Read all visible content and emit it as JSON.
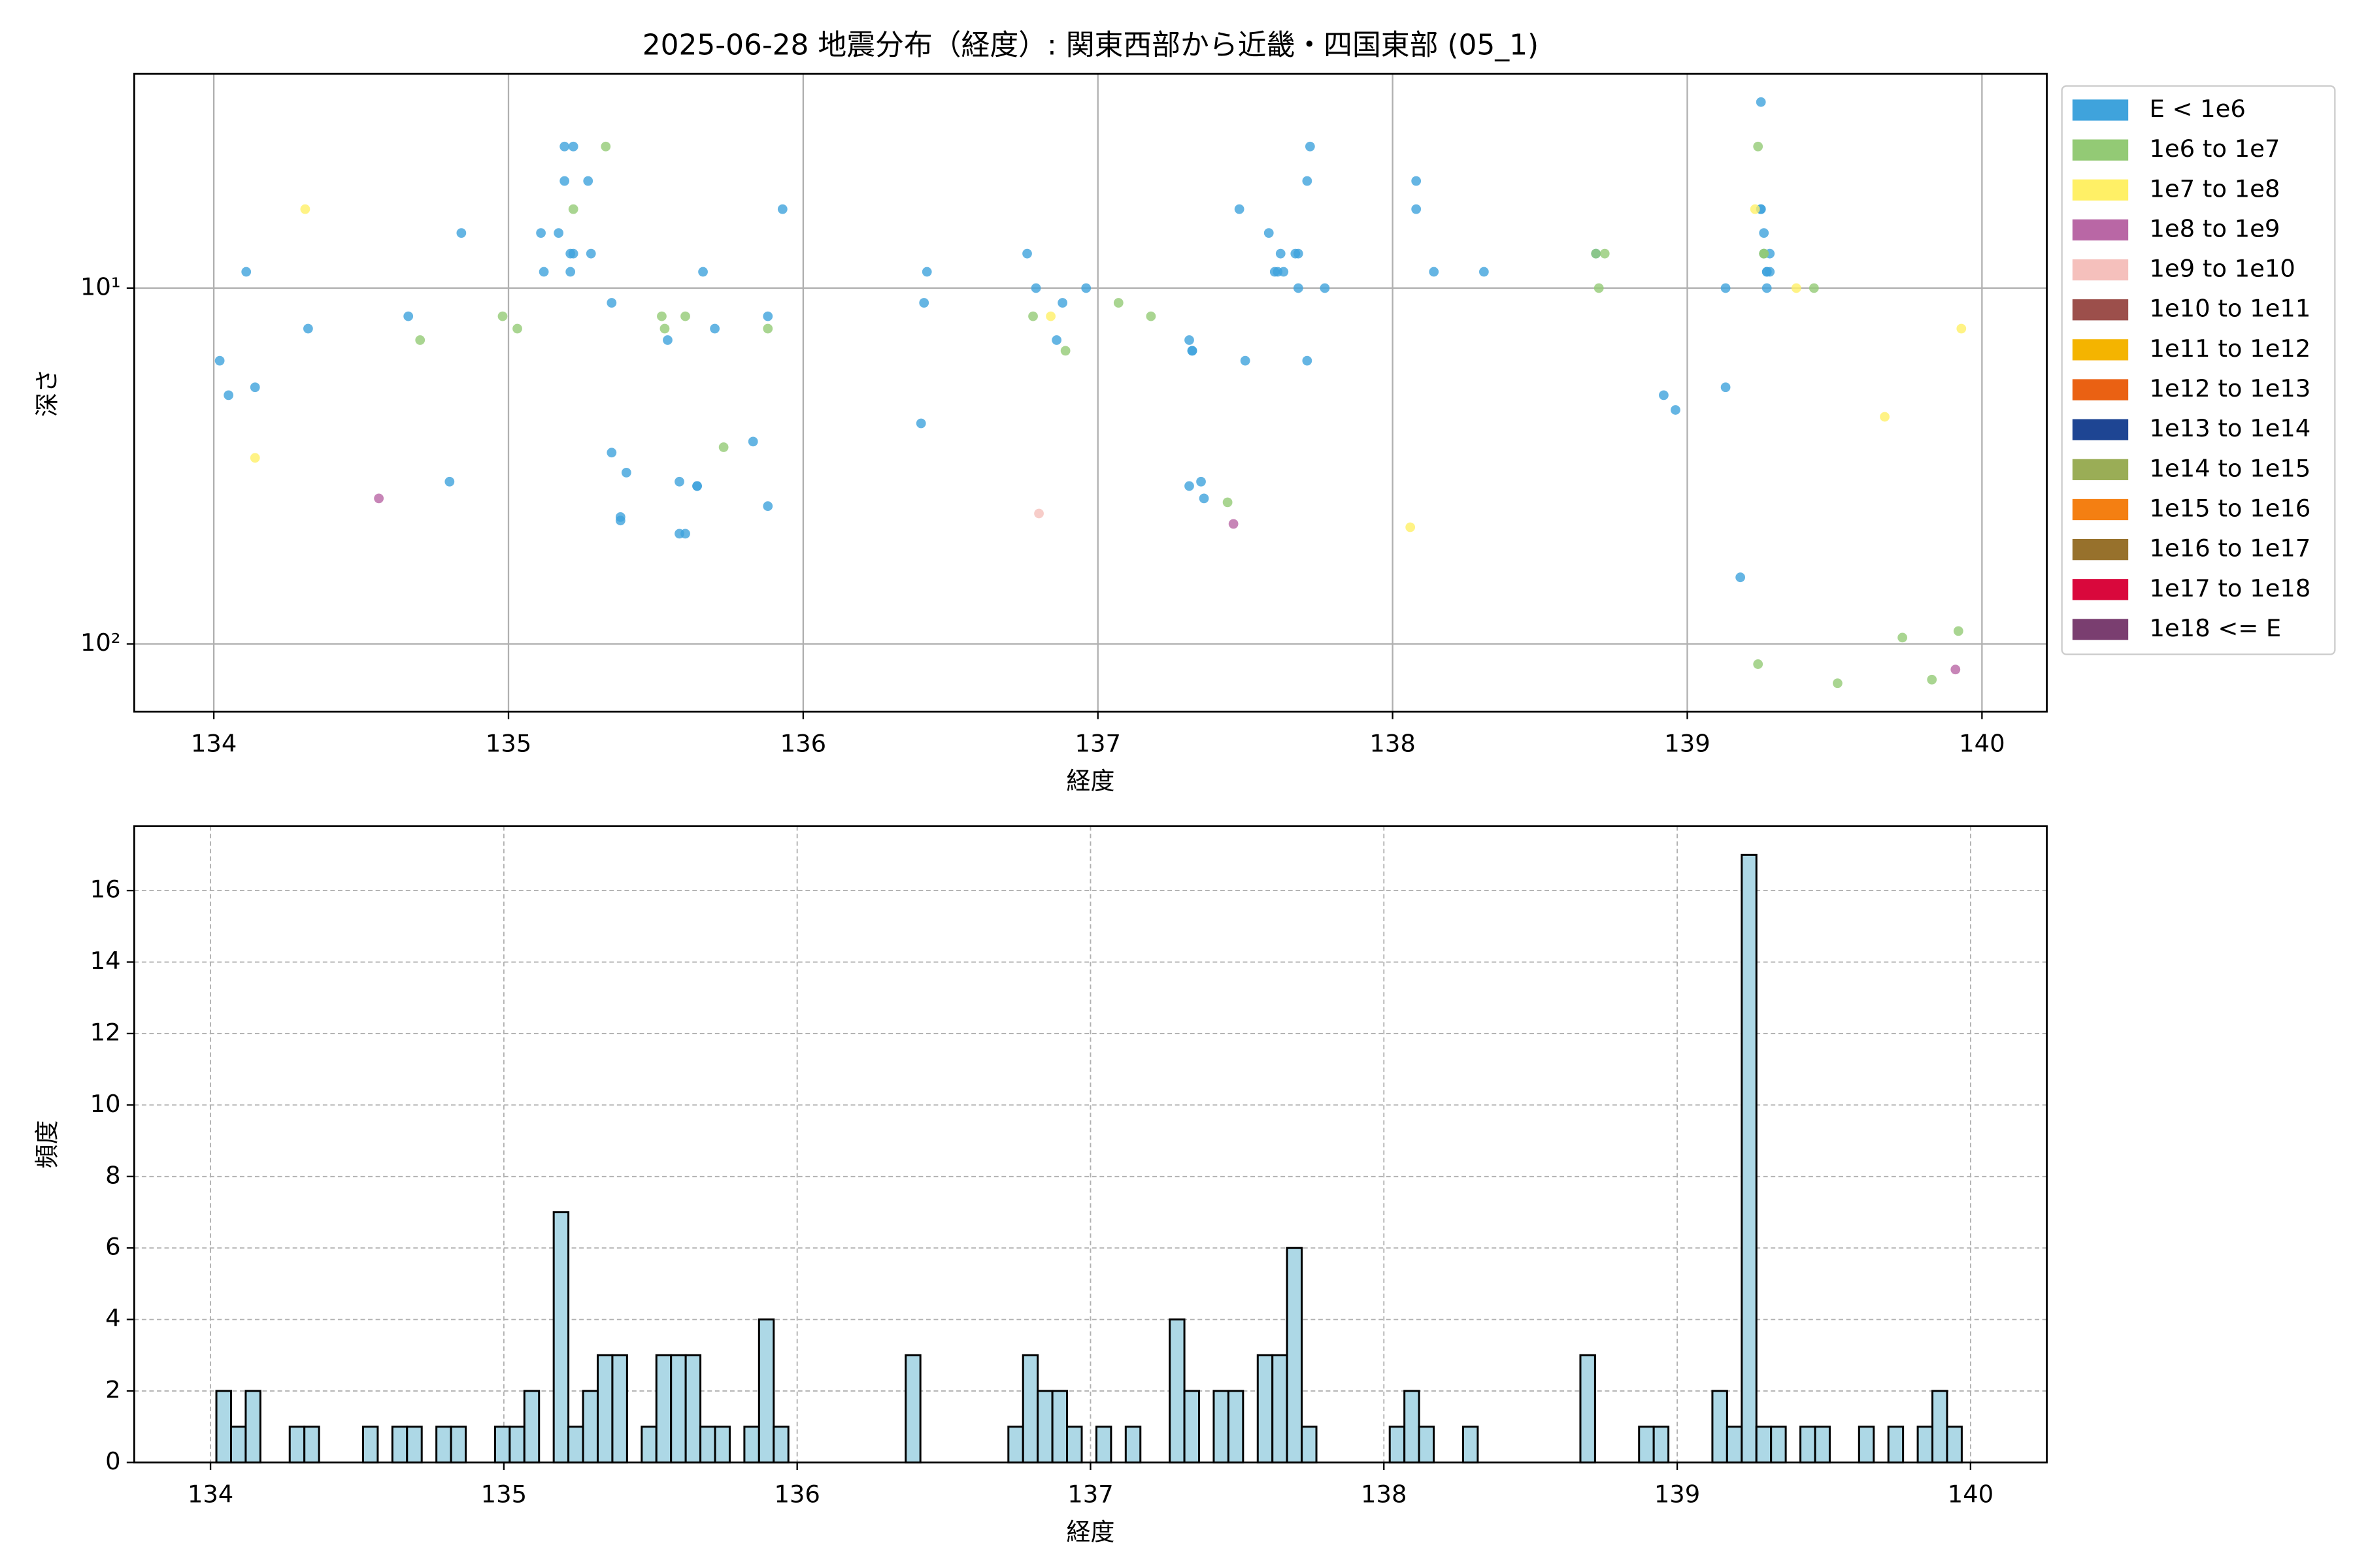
{
  "chart_data": [
    {
      "type": "scatter",
      "title": "2025-06-28 地震分布（経度）: 関東西部から近畿・四国東部 (05_1)",
      "xlabel": "経度",
      "ylabel": "深さ",
      "xlim": [
        133.73,
        140.22
      ],
      "ylim": [
        155,
        2.5
      ],
      "log_y": true,
      "grid": true,
      "legend": "outside right",
      "xticks": [
        134,
        135,
        136,
        137,
        138,
        139,
        140
      ],
      "yticks": [
        {
          "value": 10,
          "label": "10¹"
        },
        {
          "value": 100,
          "label": "10²"
        }
      ],
      "series": [
        {
          "name": "E < 1e6",
          "color": "#3fa3dc",
          "x": [
            134.02,
            134.05,
            134.11,
            134.14,
            134.32,
            134.66,
            134.8,
            134.84,
            135.11,
            135.12,
            135.17,
            135.19,
            135.19,
            135.21,
            135.21,
            135.22,
            135.22,
            135.27,
            135.28,
            135.35,
            135.35,
            135.38,
            135.38,
            135.4,
            135.54,
            135.58,
            135.58,
            135.6,
            135.64,
            135.64,
            135.66,
            135.7,
            135.83,
            135.88,
            135.93,
            135.88,
            136.4,
            136.41,
            136.42,
            136.76,
            136.79,
            136.86,
            136.88,
            136.96,
            137.31,
            137.31,
            137.32,
            137.32,
            137.35,
            137.36,
            137.48,
            137.5,
            137.58,
            137.6,
            137.61,
            137.62,
            137.63,
            137.67,
            137.68,
            137.68,
            137.71,
            137.71,
            137.72,
            137.77,
            138.08,
            138.08,
            138.14,
            138.31,
            138.69,
            138.92,
            138.96,
            139.13,
            139.13,
            139.18,
            139.25,
            139.25,
            139.26,
            139.26,
            139.27,
            139.27,
            139.27,
            139.28,
            139.28,
            139.25
          ],
          "values": [
            16,
            20,
            9,
            19,
            13,
            12,
            35,
            7,
            7,
            9,
            7,
            5,
            4,
            8,
            9,
            4,
            8,
            5,
            8,
            29,
            11,
            44,
            45,
            33,
            14,
            35,
            49,
            49,
            36,
            36,
            9,
            13,
            27,
            41,
            6,
            12,
            24,
            11,
            9,
            8,
            10,
            14,
            11,
            10,
            14,
            36,
            15,
            15,
            35,
            39,
            6,
            16,
            7,
            9,
            9,
            8,
            9,
            8,
            10,
            8,
            16,
            5,
            4,
            10,
            5,
            6,
            9,
            9,
            8,
            20,
            22,
            10,
            19,
            65,
            3,
            6,
            8,
            7,
            10,
            9,
            9,
            9,
            8,
            6
          ]
        },
        {
          "name": "1e6 to 1e7",
          "color": "#93ca75",
          "x": [
            134.7,
            134.98,
            135.03,
            135.22,
            135.33,
            135.52,
            135.53,
            135.6,
            135.73,
            135.88,
            136.78,
            136.89,
            137.07,
            137.18,
            137.44,
            138.7,
            138.69,
            138.72,
            139.24,
            139.26,
            139.26,
            139.43,
            139.73,
            139.24,
            139.51,
            139.83,
            139.92
          ],
          "values": [
            14,
            12,
            13,
            6,
            4,
            12,
            13,
            12,
            28,
            13,
            12,
            15,
            11,
            12,
            40,
            10,
            8,
            8,
            4,
            8,
            8,
            10,
            96,
            114,
            129,
            126,
            92
          ]
        },
        {
          "name": "1e7 to 1e8",
          "color": "#fff066",
          "x": [
            134.31,
            134.14,
            136.84,
            138.06,
            139.23,
            139.37,
            139.67,
            139.93
          ],
          "values": [
            6,
            30,
            12,
            47,
            6,
            10,
            23,
            13
          ]
        },
        {
          "name": "1e8 to 1e9",
          "color": "#b967a5",
          "x": [
            134.56,
            137.46,
            139.91
          ],
          "values": [
            39,
            46,
            118
          ]
        },
        {
          "name": "1e9 to 1e10",
          "color": "#f5c0bc",
          "x": [
            136.8
          ],
          "values": [
            43
          ]
        },
        {
          "name": "1e10 to 1e11",
          "color": "#9c4f4b",
          "x": [],
          "values": []
        },
        {
          "name": "1e11 to 1e12",
          "color": "#f4b400",
          "x": [],
          "values": []
        },
        {
          "name": "1e12 to 1e13",
          "color": "#ea6113",
          "x": [],
          "values": []
        },
        {
          "name": "1e13 to 1e14",
          "color": "#1e4593",
          "x": [],
          "values": []
        },
        {
          "name": "1e14 to 1e15",
          "color": "#9aad56",
          "x": [],
          "values": []
        },
        {
          "name": "1e15 to 1e16",
          "color": "#f47f12",
          "x": [],
          "values": []
        },
        {
          "name": "1e16 to 1e17",
          "color": "#97712c",
          "x": [],
          "values": []
        },
        {
          "name": "1e17 to 1e18",
          "color": "#d9083c",
          "x": [],
          "values": []
        },
        {
          "name": "1e18 <= E",
          "color": "#7a3e70",
          "x": [],
          "values": []
        }
      ]
    },
    {
      "type": "histogram",
      "xlabel": "経度",
      "ylabel": "頻度",
      "xlim": [
        133.74,
        140.26
      ],
      "ylim": [
        0,
        17.8
      ],
      "grid": true,
      "color": "#add8e6",
      "edgecolor": "#000000",
      "xticks": [
        134,
        135,
        136,
        137,
        138,
        139,
        140
      ],
      "yticks": [
        0,
        2,
        4,
        6,
        8,
        10,
        12,
        14,
        16
      ],
      "bins": [
        134.02,
        134.07,
        134.12,
        134.17,
        134.22,
        134.27,
        134.32,
        134.37,
        134.42,
        134.47,
        134.52,
        134.57,
        134.62,
        134.67,
        134.72,
        134.77,
        134.82,
        134.87,
        134.92,
        134.97,
        135.02,
        135.07,
        135.12,
        135.17,
        135.22,
        135.27,
        135.32,
        135.37,
        135.42,
        135.47,
        135.52,
        135.57,
        135.62,
        135.67,
        135.72,
        135.77,
        135.82,
        135.87,
        135.92,
        135.97,
        136.02,
        136.07,
        136.12,
        136.17,
        136.22,
        136.27,
        136.32,
        136.37,
        136.42,
        136.47,
        136.52,
        136.57,
        136.62,
        136.67,
        136.72,
        136.77,
        136.82,
        136.87,
        136.92,
        136.97,
        137.02,
        137.07,
        137.12,
        137.17,
        137.22,
        137.27,
        137.32,
        137.37,
        137.42,
        137.47,
        137.52,
        137.57,
        137.62,
        137.67,
        137.72,
        137.77,
        137.82,
        137.87,
        137.92,
        137.97,
        138.02,
        138.07,
        138.12,
        138.17,
        138.22,
        138.27,
        138.32,
        138.37,
        138.42,
        138.47,
        138.52,
        138.57,
        138.62,
        138.67,
        138.72,
        138.77,
        138.82,
        138.87,
        138.92,
        138.97,
        139.02,
        139.07,
        139.12,
        139.17,
        139.22,
        139.27,
        139.32,
        139.37,
        139.42,
        139.47,
        139.52,
        139.57,
        139.62,
        139.67,
        139.72,
        139.77,
        139.82,
        139.87,
        139.92,
        139.97,
        140.02
      ],
      "values": [
        2,
        1,
        2,
        0,
        0,
        1,
        1,
        0,
        0,
        0,
        1,
        0,
        1,
        1,
        0,
        1,
        1,
        0,
        0,
        1,
        1,
        2,
        0,
        7,
        1,
        2,
        3,
        3,
        0,
        1,
        3,
        3,
        3,
        1,
        1,
        0,
        1,
        4,
        1,
        0,
        0,
        0,
        0,
        0,
        0,
        0,
        0,
        3,
        0,
        0,
        0,
        0,
        0,
        0,
        1,
        3,
        2,
        2,
        1,
        0,
        1,
        0,
        1,
        0,
        0,
        4,
        2,
        0,
        2,
        2,
        0,
        3,
        3,
        6,
        1,
        0,
        0,
        0,
        0,
        0,
        1,
        2,
        1,
        0,
        0,
        1,
        0,
        0,
        0,
        0,
        0,
        0,
        0,
        3,
        0,
        0,
        0,
        1,
        1,
        0,
        0,
        0,
        2,
        1,
        17,
        1,
        1,
        0,
        1,
        1,
        0,
        0,
        1,
        0,
        1,
        0,
        1,
        2,
        1,
        0
      ]
    }
  ]
}
